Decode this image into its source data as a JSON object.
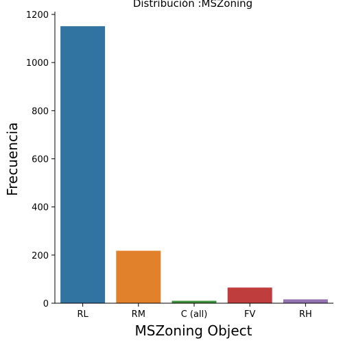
{
  "chart_data": {
    "type": "bar",
    "title": "Distribución :MSZoning",
    "xlabel": "MSZoning Object",
    "ylabel": "Frecuencia",
    "categories": [
      "RL",
      "RM",
      "C (all)",
      "FV",
      "RH"
    ],
    "values": [
      1151,
      218,
      10,
      65,
      16
    ],
    "colors": [
      "#3274a1",
      "#e1812c",
      "#3a923a",
      "#c03d3e",
      "#9372b2"
    ],
    "ylim": [
      0,
      1200
    ],
    "yticks": [
      0,
      200,
      400,
      600,
      800,
      1000,
      1200
    ],
    "grid": false,
    "legend": "none"
  }
}
